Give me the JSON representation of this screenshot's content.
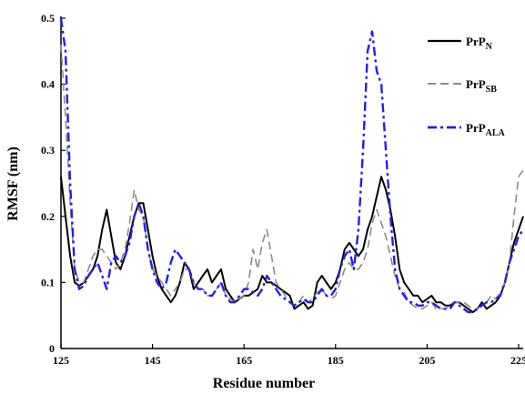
{
  "chart_data": {
    "type": "line",
    "xlabel": "Residue number",
    "ylabel": "RMSF (nm)",
    "xlim": [
      125,
      226
    ],
    "ylim": [
      0,
      0.5
    ],
    "x_ticks": [
      "125",
      "145",
      "165",
      "185",
      "205",
      "225"
    ],
    "y_ticks": [
      "0",
      "0.1",
      "0.2",
      "0.3",
      "0.4",
      "0.5"
    ],
    "grid": false,
    "legend_position": "top-right",
    "series": [
      {
        "name": "PrP",
        "subscript": "N",
        "color": "#000000",
        "dash": "solid",
        "x": [
          125,
          126,
          127,
          128,
          129,
          130,
          131,
          132,
          133,
          134,
          135,
          136,
          137,
          138,
          139,
          140,
          141,
          142,
          143,
          144,
          145,
          146,
          147,
          148,
          149,
          150,
          151,
          152,
          153,
          154,
          155,
          156,
          157,
          158,
          159,
          160,
          161,
          162,
          163,
          164,
          165,
          166,
          167,
          168,
          169,
          170,
          171,
          172,
          173,
          174,
          175,
          176,
          177,
          178,
          179,
          180,
          181,
          182,
          183,
          184,
          185,
          186,
          187,
          188,
          189,
          190,
          191,
          192,
          193,
          194,
          195,
          196,
          197,
          198,
          199,
          200,
          201,
          202,
          203,
          204,
          205,
          206,
          207,
          208,
          209,
          210,
          211,
          212,
          213,
          214,
          215,
          216,
          217,
          218,
          219,
          220,
          221,
          222,
          223,
          224,
          225,
          226
        ],
        "values": [
          0.26,
          0.2,
          0.14,
          0.1,
          0.095,
          0.1,
          0.11,
          0.12,
          0.14,
          0.18,
          0.21,
          0.17,
          0.13,
          0.12,
          0.14,
          0.17,
          0.2,
          0.22,
          0.22,
          0.18,
          0.14,
          0.11,
          0.09,
          0.08,
          0.07,
          0.08,
          0.1,
          0.13,
          0.12,
          0.09,
          0.1,
          0.11,
          0.12,
          0.1,
          0.11,
          0.12,
          0.09,
          0.08,
          0.07,
          0.075,
          0.08,
          0.08,
          0.085,
          0.09,
          0.11,
          0.1,
          0.1,
          0.095,
          0.09,
          0.085,
          0.08,
          0.06,
          0.065,
          0.07,
          0.06,
          0.065,
          0.1,
          0.11,
          0.1,
          0.09,
          0.1,
          0.12,
          0.15,
          0.16,
          0.15,
          0.14,
          0.15,
          0.18,
          0.2,
          0.23,
          0.26,
          0.24,
          0.21,
          0.17,
          0.12,
          0.1,
          0.09,
          0.08,
          0.08,
          0.07,
          0.075,
          0.08,
          0.07,
          0.07,
          0.065,
          0.065,
          0.07,
          0.07,
          0.065,
          0.06,
          0.055,
          0.06,
          0.07,
          0.06,
          0.065,
          0.07,
          0.08,
          0.1,
          0.13,
          0.16,
          0.18,
          0.2
        ]
      },
      {
        "name": "PrP",
        "subscript": "SB",
        "color": "#8c8c8c",
        "dash": "dashed",
        "x": [
          125,
          126,
          127,
          128,
          129,
          130,
          131,
          132,
          133,
          134,
          135,
          136,
          137,
          138,
          139,
          140,
          141,
          142,
          143,
          144,
          145,
          146,
          147,
          148,
          149,
          150,
          151,
          152,
          153,
          154,
          155,
          156,
          157,
          158,
          159,
          160,
          161,
          162,
          163,
          164,
          165,
          166,
          167,
          168,
          169,
          170,
          171,
          172,
          173,
          174,
          175,
          176,
          177,
          178,
          179,
          180,
          181,
          182,
          183,
          184,
          185,
          186,
          187,
          188,
          189,
          190,
          191,
          192,
          193,
          194,
          195,
          196,
          197,
          198,
          199,
          200,
          201,
          202,
          203,
          204,
          205,
          206,
          207,
          208,
          209,
          210,
          211,
          212,
          213,
          214,
          215,
          216,
          217,
          218,
          219,
          220,
          221,
          222,
          223,
          224,
          225,
          226
        ],
        "values": [
          0.46,
          0.35,
          0.22,
          0.12,
          0.1,
          0.1,
          0.12,
          0.14,
          0.15,
          0.15,
          0.14,
          0.13,
          0.12,
          0.13,
          0.15,
          0.19,
          0.24,
          0.21,
          0.2,
          0.15,
          0.12,
          0.11,
          0.1,
          0.09,
          0.08,
          0.09,
          0.1,
          0.12,
          0.12,
          0.1,
          0.09,
          0.09,
          0.08,
          0.08,
          0.09,
          0.1,
          0.08,
          0.075,
          0.07,
          0.075,
          0.08,
          0.1,
          0.15,
          0.12,
          0.16,
          0.18,
          0.14,
          0.1,
          0.09,
          0.08,
          0.07,
          0.065,
          0.07,
          0.08,
          0.07,
          0.075,
          0.085,
          0.09,
          0.08,
          0.075,
          0.08,
          0.1,
          0.12,
          0.13,
          0.12,
          0.12,
          0.13,
          0.15,
          0.19,
          0.21,
          0.19,
          0.17,
          0.14,
          0.11,
          0.09,
          0.085,
          0.07,
          0.065,
          0.06,
          0.06,
          0.065,
          0.07,
          0.06,
          0.06,
          0.06,
          0.065,
          0.07,
          0.07,
          0.07,
          0.065,
          0.06,
          0.06,
          0.065,
          0.07,
          0.08,
          0.075,
          0.085,
          0.1,
          0.13,
          0.2,
          0.26,
          0.27
        ]
      },
      {
        "name": "PrP",
        "subscript": "ALA",
        "color": "#2222dd",
        "dash": "dashdot",
        "x": [
          125,
          126,
          127,
          128,
          129,
          130,
          131,
          132,
          133,
          134,
          135,
          136,
          137,
          138,
          139,
          140,
          141,
          142,
          143,
          144,
          145,
          146,
          147,
          148,
          149,
          150,
          151,
          152,
          153,
          154,
          155,
          156,
          157,
          158,
          159,
          160,
          161,
          162,
          163,
          164,
          165,
          166,
          167,
          168,
          169,
          170,
          171,
          172,
          173,
          174,
          175,
          176,
          177,
          178,
          179,
          180,
          181,
          182,
          183,
          184,
          185,
          186,
          187,
          188,
          189,
          190,
          191,
          192,
          193,
          194,
          195,
          196,
          197,
          198,
          199,
          200,
          201,
          202,
          203,
          204,
          205,
          206,
          207,
          208,
          209,
          210,
          211,
          212,
          213,
          214,
          215,
          216,
          217,
          218,
          219,
          220,
          221,
          222,
          223,
          224,
          225,
          226
        ],
        "values": [
          0.5,
          0.45,
          0.25,
          0.12,
          0.09,
          0.095,
          0.11,
          0.12,
          0.13,
          0.11,
          0.09,
          0.13,
          0.14,
          0.13,
          0.14,
          0.16,
          0.2,
          0.22,
          0.2,
          0.15,
          0.12,
          0.1,
          0.09,
          0.1,
          0.13,
          0.15,
          0.14,
          0.13,
          0.12,
          0.1,
          0.09,
          0.09,
          0.08,
          0.08,
          0.09,
          0.1,
          0.08,
          0.07,
          0.07,
          0.08,
          0.09,
          0.09,
          0.085,
          0.08,
          0.09,
          0.11,
          0.1,
          0.09,
          0.08,
          0.075,
          0.07,
          0.065,
          0.07,
          0.075,
          0.07,
          0.07,
          0.08,
          0.09,
          0.08,
          0.08,
          0.09,
          0.12,
          0.14,
          0.15,
          0.12,
          0.18,
          0.3,
          0.45,
          0.48,
          0.42,
          0.4,
          0.3,
          0.2,
          0.12,
          0.09,
          0.08,
          0.07,
          0.07,
          0.065,
          0.065,
          0.07,
          0.07,
          0.065,
          0.06,
          0.06,
          0.06,
          0.07,
          0.065,
          0.06,
          0.055,
          0.055,
          0.06,
          0.065,
          0.07,
          0.07,
          0.075,
          0.08,
          0.1,
          0.13,
          0.15,
          0.17,
          0.18
        ]
      }
    ]
  }
}
